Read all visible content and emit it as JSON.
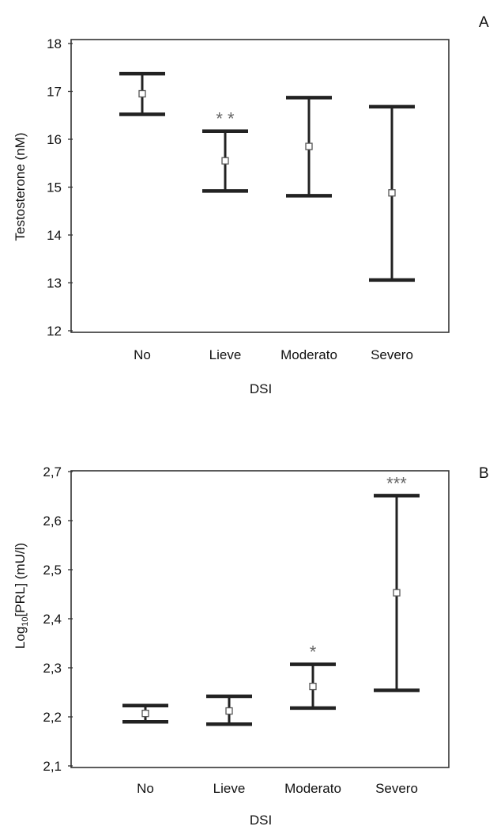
{
  "chart_data": [
    {
      "type": "errorbar",
      "panel_label": "A",
      "xlabel": "DSI",
      "ylabel": "Testosterone (nM)",
      "categories": [
        "No",
        "Lieve",
        "Moderato",
        "Severo"
      ],
      "ylim": [
        12,
        18
      ],
      "yticks": [
        "12",
        "13",
        "14",
        "15",
        "16",
        "17",
        "18"
      ],
      "grid": false,
      "series": [
        {
          "means": [
            16.95,
            15.55,
            15.85,
            14.88
          ],
          "lower": [
            16.52,
            14.92,
            14.82,
            13.06
          ],
          "upper": [
            17.37,
            16.17,
            16.87,
            16.68
          ],
          "annotations": [
            "",
            "* *",
            "",
            ""
          ]
        }
      ]
    },
    {
      "type": "errorbar",
      "panel_label": "B",
      "xlabel": "DSI",
      "ylabel_main": "Log",
      "ylabel_sub": "10",
      "ylabel_rest": "[PRL] (mU/l)",
      "categories": [
        "No",
        "Lieve",
        "Moderato",
        "Severo"
      ],
      "ylim": [
        2.1,
        2.7
      ],
      "yticks": [
        "2,1",
        "2,2",
        "2,3",
        "2,4",
        "2,5",
        "2,6",
        "2,7"
      ],
      "grid": false,
      "series": [
        {
          "means": [
            2.207,
            2.212,
            2.262,
            2.453
          ],
          "lower": [
            2.19,
            2.185,
            2.218,
            2.254
          ],
          "upper": [
            2.223,
            2.242,
            2.307,
            2.651
          ],
          "annotations": [
            "",
            "",
            "*",
            "***"
          ]
        }
      ]
    }
  ]
}
